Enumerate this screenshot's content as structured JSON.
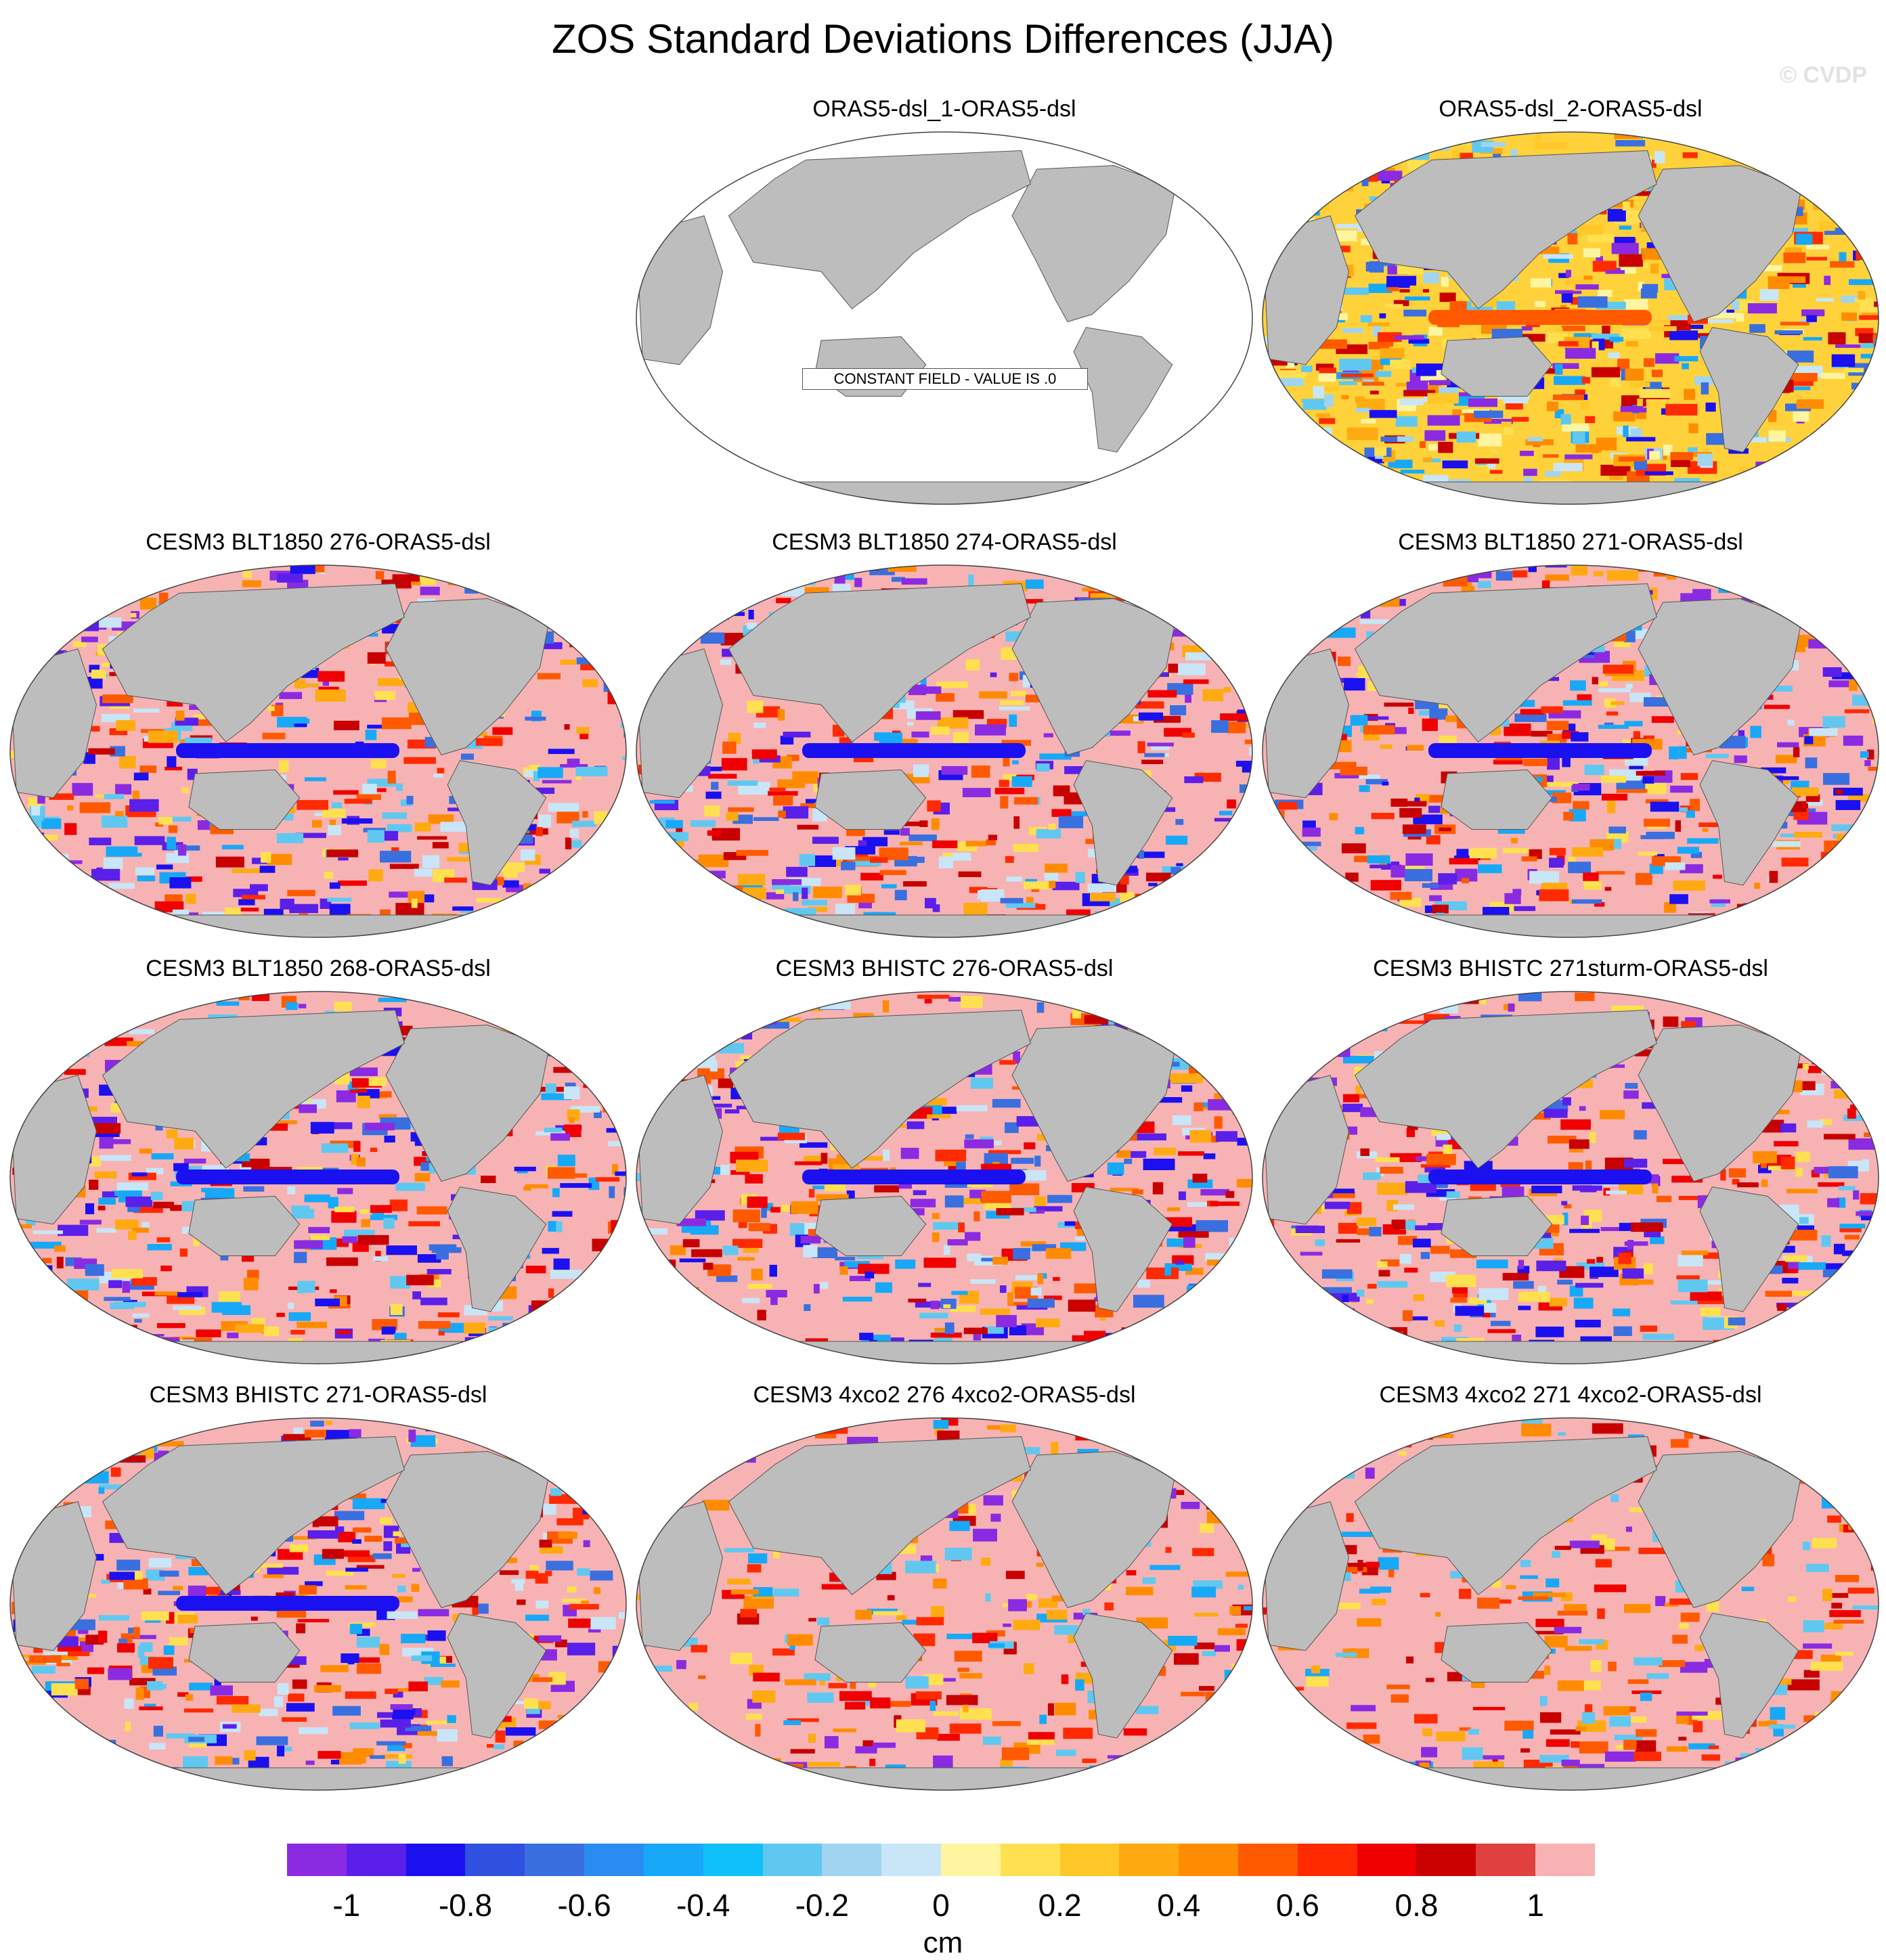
{
  "title": "ZOS Standard Deviations Differences (JJA)",
  "watermark": "© CVDP",
  "colors": {
    "land": "#bdbdbd",
    "ocean_empty": "#ffffff",
    "coast": "#555555",
    "saturated_positive": "#f7b3b3"
  },
  "panels": [
    {
      "title": "ORAS5-dsl_1-ORAS5-dsl",
      "constant_label": "CONSTANT FIELD - VALUE IS .0",
      "pattern": "constant"
    },
    {
      "title": "ORAS5-dsl_2-ORAS5-dsl",
      "pattern": "mixed"
    },
    {
      "title": "CESM3 BLT1850 276-ORAS5-dsl",
      "pattern": "model"
    },
    {
      "title": "CESM3 BLT1850 274-ORAS5-dsl",
      "pattern": "model"
    },
    {
      "title": "CESM3 BLT1850 271-ORAS5-dsl",
      "pattern": "model"
    },
    {
      "title": "CESM3 BLT1850 268-ORAS5-dsl",
      "pattern": "model"
    },
    {
      "title": "CESM3 BHISTC 276-ORAS5-dsl",
      "pattern": "model"
    },
    {
      "title": "CESM3 BHISTC 271sturm-ORAS5-dsl",
      "pattern": "model"
    },
    {
      "title": "CESM3 BHISTC 271-ORAS5-dsl",
      "pattern": "model"
    },
    {
      "title": "CESM3 4xco2 276 4xco2-ORAS5-dsl",
      "pattern": "warm"
    },
    {
      "title": "CESM3 4xco2 271 4xco2-ORAS5-dsl",
      "pattern": "warm"
    }
  ],
  "colorbar": {
    "colors": [
      "#8a2be2",
      "#5a1fe8",
      "#1a10f0",
      "#3050e0",
      "#3a6fe0",
      "#2a8cf0",
      "#18a8f8",
      "#10c0f8",
      "#60c8f0",
      "#a0d4f0",
      "#c8e6f8",
      "#fff5a0",
      "#ffe050",
      "#ffc828",
      "#ffaa10",
      "#ff8c00",
      "#ff5a00",
      "#ff2a00",
      "#f00000",
      "#c80000",
      "#e04040",
      "#f7b3b3"
    ],
    "ticks": [
      "-1",
      "-0.8",
      "-0.6",
      "-0.4",
      "-0.2",
      "0",
      "0.2",
      "0.4",
      "0.6",
      "0.8",
      "1"
    ],
    "units": "cm"
  }
}
